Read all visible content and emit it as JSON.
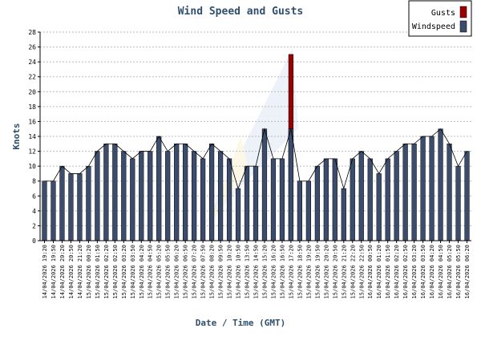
{
  "chart_data": {
    "type": "bar",
    "title": "Wind Speed and Gusts",
    "xlabel": "Date / Time (GMT)",
    "ylabel": "Knots",
    "ylim": [
      0,
      28
    ],
    "yticks": [
      0,
      2,
      4,
      6,
      8,
      10,
      12,
      14,
      16,
      18,
      20,
      22,
      24,
      26,
      28
    ],
    "grid": true,
    "legend_position": "top-right",
    "categories": [
      "14/04/2026 19:20",
      "14/04/2026 19:50",
      "14/04/2026 20:20",
      "14/04/2026 20:50",
      "14/04/2026 21:20",
      "15/04/2026 00:20",
      "15/04/2026 01:50",
      "15/04/2026 02:20",
      "15/04/2026 02:50",
      "15/04/2026 03:20",
      "15/04/2026 03:50",
      "15/04/2026 04:20",
      "15/04/2026 04:50",
      "15/04/2026 05:20",
      "15/04/2026 05:50",
      "15/04/2026 06:20",
      "15/04/2026 06:50",
      "15/04/2026 07:20",
      "15/04/2026 07:50",
      "15/04/2026 08:20",
      "15/04/2026 09:50",
      "15/04/2026 10:20",
      "15/04/2026 10:50",
      "15/04/2026 13:50",
      "15/04/2026 14:50",
      "15/04/2026 15:20",
      "15/04/2026 16:20",
      "15/04/2026 16:50",
      "15/04/2026 17:20",
      "15/04/2026 18:50",
      "15/04/2026 19:20",
      "15/04/2026 19:50",
      "15/04/2026 20:20",
      "15/04/2026 20:50",
      "15/04/2026 21:20",
      "15/04/2026 22:20",
      "15/04/2026 22:50",
      "16/04/2026 00:50",
      "16/04/2026 01:20",
      "16/04/2026 01:50",
      "16/04/2026 02:20",
      "16/04/2026 02:50",
      "16/04/2026 03:20",
      "16/04/2026 03:50",
      "16/04/2026 04:20",
      "16/04/2026 04:50",
      "16/04/2026 05:20",
      "16/04/2026 05:50",
      "16/04/2026 06:20"
    ],
    "series": [
      {
        "name": "Gusts",
        "color": "#990000",
        "values": [
          null,
          null,
          null,
          null,
          null,
          null,
          null,
          null,
          null,
          null,
          null,
          null,
          null,
          null,
          null,
          null,
          null,
          null,
          null,
          null,
          null,
          null,
          null,
          null,
          null,
          null,
          null,
          null,
          25,
          null,
          null,
          null,
          null,
          null,
          null,
          null,
          null,
          null,
          null,
          null,
          null,
          null,
          null,
          null,
          null,
          null,
          null,
          null,
          null
        ]
      },
      {
        "name": "Windspeed",
        "color": "#3c4c6c",
        "values": [
          8,
          8,
          10,
          9,
          9,
          10,
          12,
          13,
          13,
          12,
          11,
          12,
          12,
          14,
          12,
          13,
          13,
          12,
          11,
          13,
          12,
          11,
          7,
          10,
          10,
          15,
          11,
          11,
          15,
          8,
          8,
          10,
          11,
          11,
          7,
          11,
          12,
          11,
          9,
          11,
          12,
          13,
          13,
          14,
          14,
          15,
          13,
          10,
          12
        ]
      }
    ]
  }
}
